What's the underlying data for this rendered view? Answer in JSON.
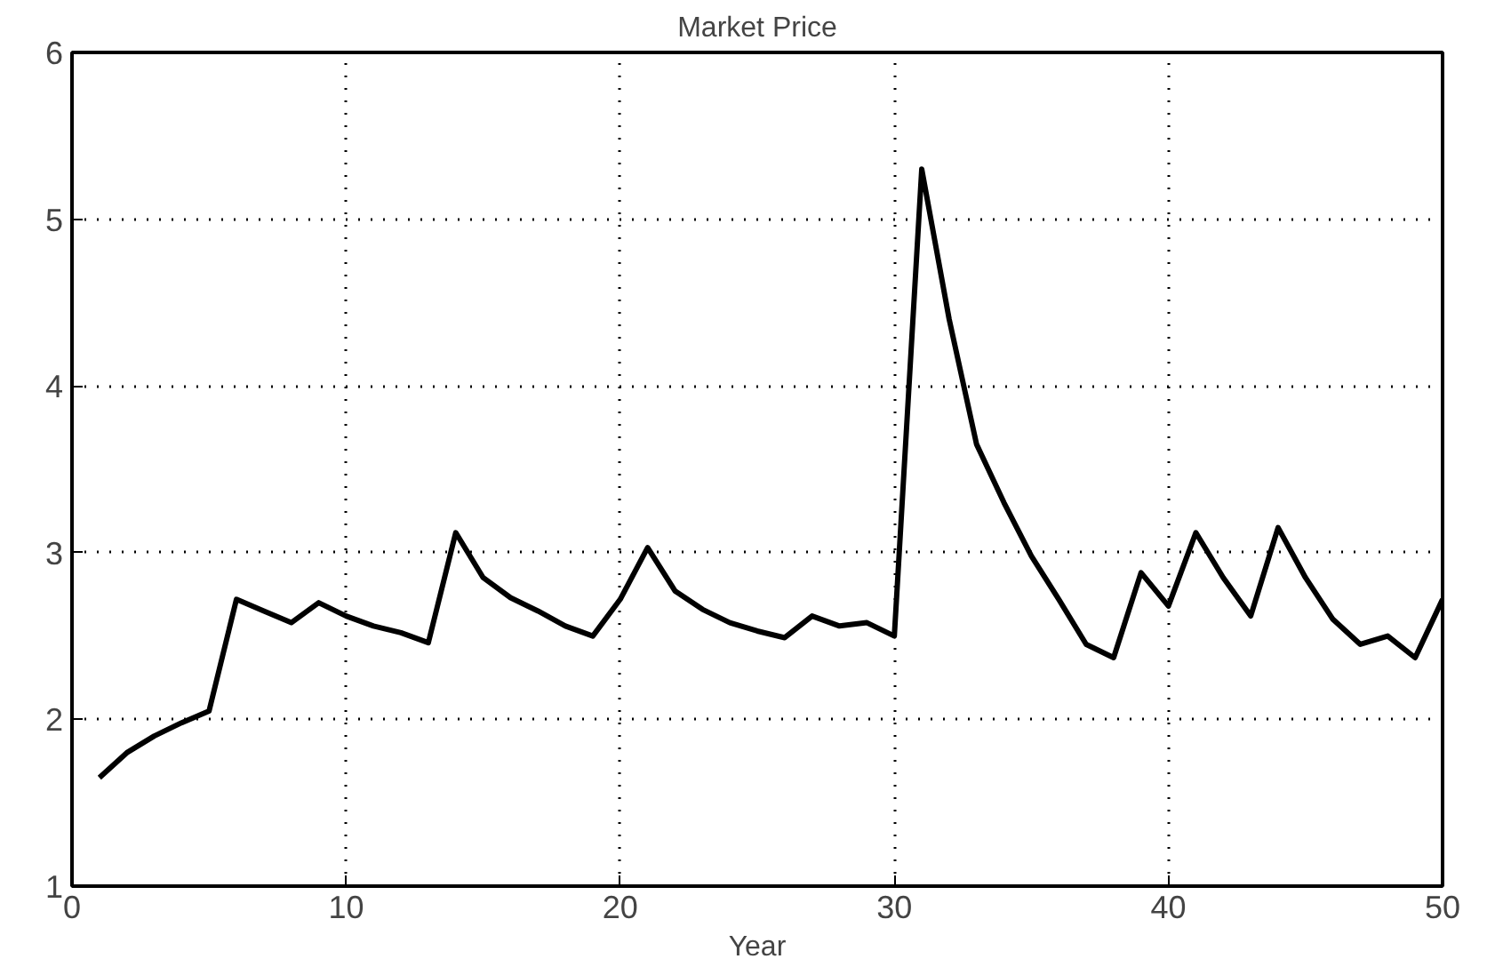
{
  "chart_data": {
    "type": "line",
    "title": "Market Price",
    "xlabel": "Year",
    "x": [
      1,
      2,
      3,
      4,
      5,
      6,
      7,
      8,
      9,
      10,
      11,
      12,
      13,
      14,
      15,
      16,
      17,
      18,
      19,
      20,
      21,
      22,
      23,
      24,
      25,
      26,
      27,
      28,
      29,
      30,
      31,
      32,
      33,
      34,
      35,
      36,
      37,
      38,
      39,
      40,
      41,
      42,
      43,
      44,
      45,
      46,
      47,
      48,
      49,
      50
    ],
    "series": [
      {
        "color": "#000000",
        "values": [
          1.65,
          1.8,
          1.9,
          1.98,
          2.05,
          2.72,
          2.65,
          2.58,
          2.7,
          2.62,
          2.56,
          2.52,
          2.46,
          3.12,
          2.85,
          2.73,
          2.65,
          2.56,
          2.5,
          2.72,
          3.03,
          2.77,
          2.66,
          2.58,
          2.53,
          2.49,
          2.62,
          2.56,
          2.58,
          2.5,
          5.3,
          4.4,
          3.65,
          3.3,
          2.98,
          2.72,
          2.45,
          2.37,
          2.88,
          2.68,
          3.12,
          2.85,
          2.62,
          3.15,
          2.85,
          2.6,
          2.45,
          2.5,
          2.37,
          2.72
        ]
      }
    ],
    "xlim": [
      0,
      50
    ],
    "ylim": [
      1,
      6
    ],
    "xticks": [
      0,
      10,
      20,
      30,
      40,
      50
    ],
    "yticks": [
      1,
      2,
      3,
      4,
      5,
      6
    ],
    "grid": true,
    "marker": "none",
    "line_style": "solid"
  }
}
